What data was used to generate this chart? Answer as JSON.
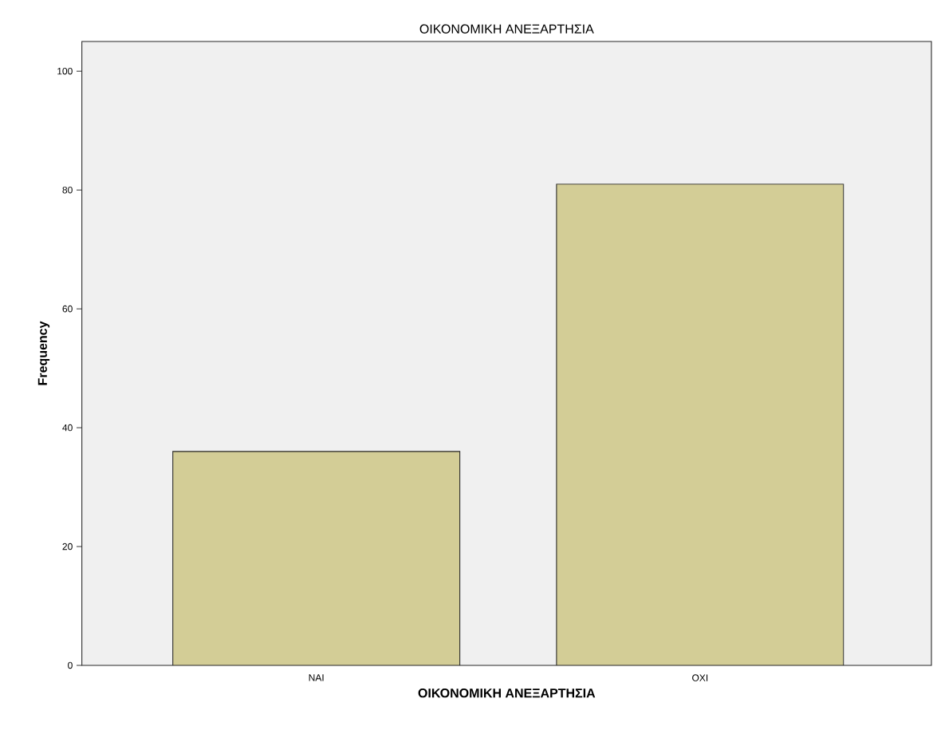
{
  "chart_data": {
    "type": "bar",
    "title": "ΟΙΚΟΝΟΜΙΚΗ ΑΝΕΞΑΡΤΗΣΙΑ",
    "xlabel": "ΟΙΚΟΝΟΜΙΚΗ ΑΝΕΞΑΡΤΗΣΙΑ",
    "ylabel": "Frequency",
    "categories": [
      "ΝΑΙ",
      "ΟΧΙ"
    ],
    "values": [
      36,
      81
    ],
    "color": "#d3cd96",
    "ylim": [
      0,
      105
    ],
    "yticks": [
      0,
      20,
      40,
      60,
      80,
      100
    ]
  }
}
